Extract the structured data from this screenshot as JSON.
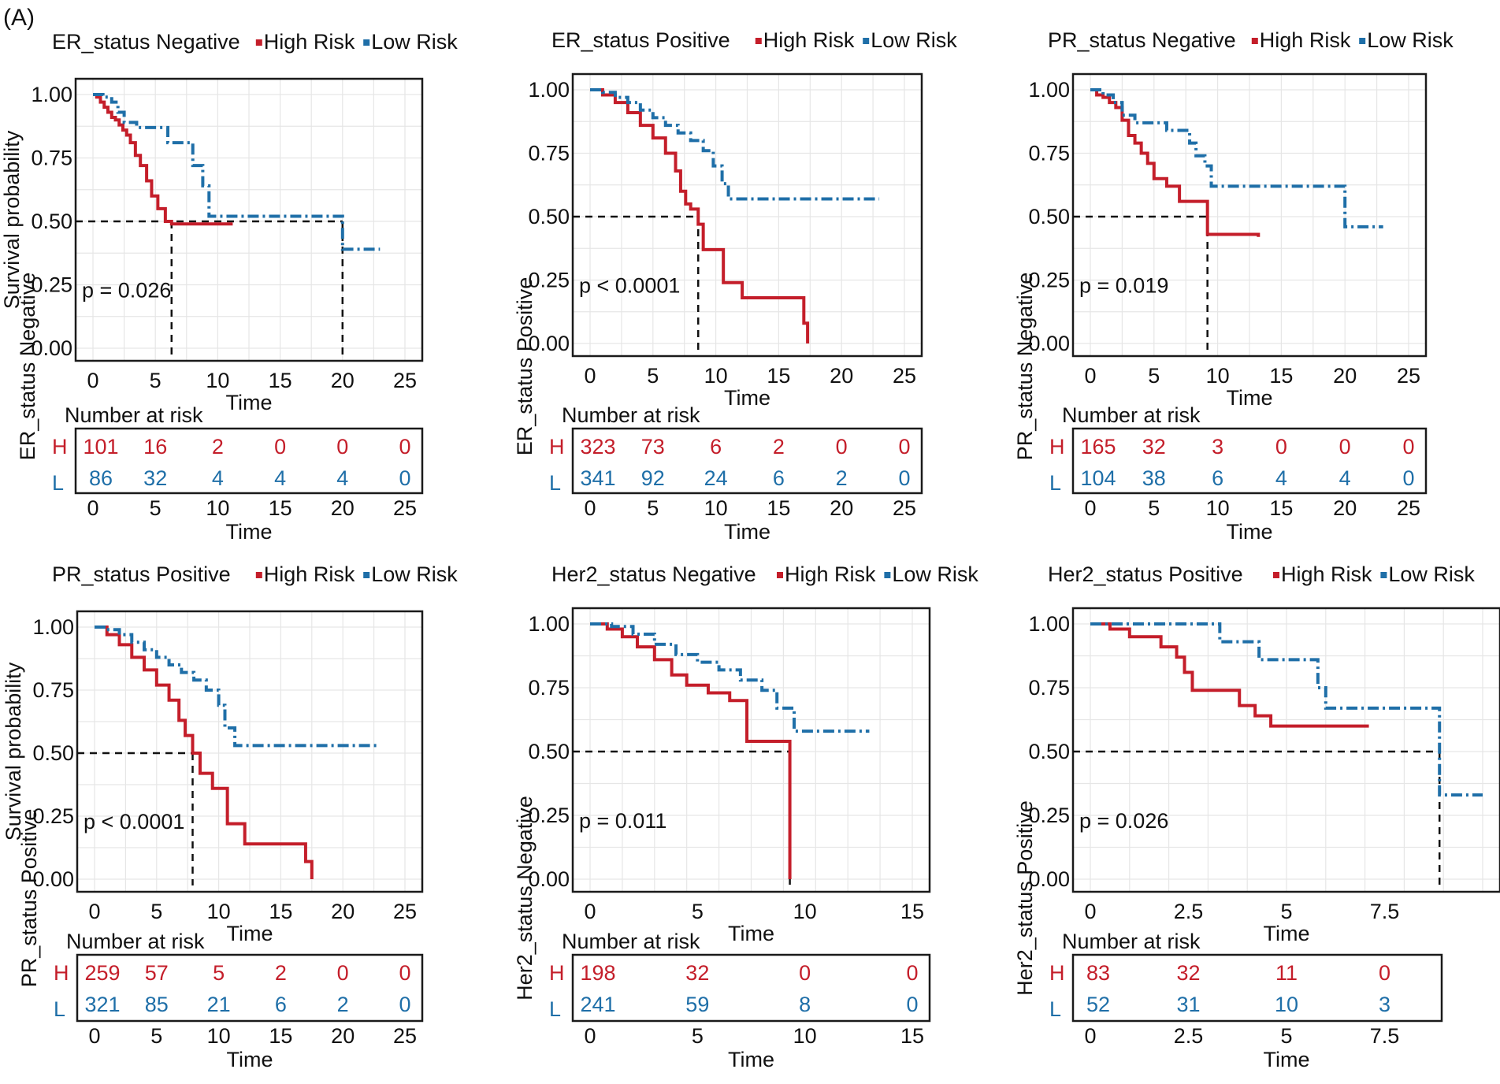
{
  "figure_label": "(A)",
  "colors": {
    "high": "#c41e2a",
    "low": "#1f6fa8",
    "grid": "#e6e6e6",
    "frame": "#1a1a1a",
    "median": "#111111"
  },
  "common": {
    "ylabel": "Survival probability",
    "xlabel": "Time",
    "risk_title": "Number at risk",
    "high_label": "High Risk",
    "low_label": "Low Risk",
    "h_row": "H",
    "l_row": "L",
    "y_ticks": [
      "0.00",
      "0.25",
      "0.50",
      "0.75",
      "1.00"
    ]
  },
  "chart_data": [
    {
      "type": "line",
      "title": "ER_status Negative",
      "strata_label": "ER_status Negative",
      "pvalue": "p = 0.026",
      "xlim": [
        0,
        25
      ],
      "ylim": [
        0,
        1
      ],
      "x_ticks": [
        "0",
        "5",
        "10",
        "15",
        "20",
        "25"
      ],
      "x_tick_values": [
        0,
        5,
        10,
        15,
        20,
        25
      ],
      "median_high": 6.3,
      "median_low": 20.0,
      "risk_times": [
        0,
        5,
        10,
        15,
        20,
        25
      ],
      "risk_high": [
        "101",
        "16",
        "2",
        "0",
        "0",
        "0"
      ],
      "risk_low": [
        "86",
        "32",
        "4",
        "4",
        "4",
        "0"
      ],
      "series": [
        {
          "name": "High Risk",
          "x": [
            0,
            0.3,
            0.6,
            0.9,
            1.2,
            1.5,
            1.8,
            2.1,
            2.4,
            2.7,
            3.0,
            3.4,
            3.8,
            4.3,
            4.7,
            5.2,
            5.8,
            6.3,
            11.2
          ],
          "y": [
            1.0,
            0.99,
            0.97,
            0.95,
            0.93,
            0.91,
            0.9,
            0.88,
            0.86,
            0.84,
            0.81,
            0.76,
            0.72,
            0.66,
            0.6,
            0.55,
            0.5,
            0.49,
            0.49
          ]
        },
        {
          "name": "Low Risk",
          "x": [
            0,
            0.8,
            1.5,
            2.0,
            2.5,
            3.5,
            5.0,
            6.0,
            7.5,
            8.0,
            8.8,
            9.3,
            10.0,
            20.0,
            23.0
          ],
          "y": [
            1.0,
            0.99,
            0.97,
            0.93,
            0.89,
            0.87,
            0.87,
            0.81,
            0.81,
            0.72,
            0.64,
            0.52,
            0.52,
            0.39,
            0.39
          ]
        }
      ]
    },
    {
      "type": "line",
      "title": "ER_status Positive",
      "strata_label": "ER_status Positive",
      "pvalue": "p < 0.0001",
      "xlim": [
        0,
        25
      ],
      "ylim": [
        0,
        1
      ],
      "x_ticks": [
        "0",
        "5",
        "10",
        "15",
        "20",
        "25"
      ],
      "x_tick_values": [
        0,
        5,
        10,
        15,
        20,
        25
      ],
      "median_high": 8.6,
      "median_low": null,
      "risk_times": [
        0,
        5,
        10,
        15,
        20,
        25
      ],
      "risk_high": [
        "323",
        "73",
        "6",
        "2",
        "0",
        "0"
      ],
      "risk_low": [
        "341",
        "92",
        "24",
        "6",
        "2",
        "0"
      ],
      "series": [
        {
          "name": "High Risk",
          "x": [
            0,
            1,
            2,
            3,
            4,
            5,
            6,
            6.8,
            7.2,
            7.6,
            8.0,
            8.6,
            9.0,
            10.6,
            12.1,
            17.0,
            17.3
          ],
          "y": [
            1.0,
            0.98,
            0.95,
            0.91,
            0.86,
            0.81,
            0.75,
            0.68,
            0.6,
            0.55,
            0.53,
            0.47,
            0.37,
            0.24,
            0.18,
            0.08,
            0.0
          ]
        },
        {
          "name": "Low Risk",
          "x": [
            0,
            1,
            2,
            3,
            4,
            5,
            6,
            7,
            8,
            9,
            9.8,
            10.5,
            11.0,
            23.0
          ],
          "y": [
            1.0,
            0.99,
            0.97,
            0.95,
            0.92,
            0.89,
            0.86,
            0.83,
            0.8,
            0.76,
            0.7,
            0.63,
            0.57,
            0.57
          ]
        }
      ]
    },
    {
      "type": "line",
      "title": "PR_status Negative",
      "strata_label": "PR_status Negative",
      "pvalue": "p = 0.019",
      "xlim": [
        0,
        25
      ],
      "ylim": [
        0,
        1
      ],
      "x_ticks": [
        "0",
        "5",
        "10",
        "15",
        "20",
        "25"
      ],
      "x_tick_values": [
        0,
        5,
        10,
        15,
        20,
        25
      ],
      "median_high": 9.2,
      "median_low": null,
      "risk_times": [
        0,
        5,
        10,
        15,
        20,
        25
      ],
      "risk_high": [
        "165",
        "32",
        "3",
        "0",
        "0",
        "0"
      ],
      "risk_low": [
        "104",
        "38",
        "6",
        "4",
        "4",
        "0"
      ],
      "series": [
        {
          "name": "High Risk",
          "x": [
            0,
            0.5,
            1.0,
            1.5,
            2.0,
            2.5,
            3.0,
            3.5,
            4.0,
            4.5,
            5.0,
            6.0,
            7.0,
            9.2,
            13.2
          ],
          "y": [
            1.0,
            0.98,
            0.97,
            0.95,
            0.93,
            0.88,
            0.82,
            0.79,
            0.75,
            0.71,
            0.65,
            0.62,
            0.56,
            0.43,
            0.42
          ]
        },
        {
          "name": "Low Risk",
          "x": [
            0,
            1.0,
            1.8,
            2.5,
            3.5,
            4.5,
            6.0,
            7.0,
            7.8,
            8.3,
            9.0,
            9.5,
            20.0,
            23.0
          ],
          "y": [
            1.0,
            0.98,
            0.95,
            0.9,
            0.87,
            0.87,
            0.84,
            0.84,
            0.79,
            0.74,
            0.7,
            0.62,
            0.46,
            0.46
          ]
        }
      ]
    },
    {
      "type": "line",
      "title": "PR_status Positive",
      "strata_label": "PR_status Positive",
      "pvalue": "p < 0.0001",
      "xlim": [
        0,
        25
      ],
      "ylim": [
        0,
        1
      ],
      "x_ticks": [
        "0",
        "5",
        "10",
        "15",
        "20",
        "25"
      ],
      "x_tick_values": [
        0,
        5,
        10,
        15,
        20,
        25
      ],
      "median_high": 7.9,
      "median_low": null,
      "risk_times": [
        0,
        5,
        10,
        15,
        20,
        25
      ],
      "risk_high": [
        "259",
        "57",
        "5",
        "2",
        "0",
        "0"
      ],
      "risk_low": [
        "321",
        "85",
        "21",
        "6",
        "2",
        "0"
      ],
      "series": [
        {
          "name": "High Risk",
          "x": [
            0,
            1,
            2,
            3,
            4,
            5,
            6,
            6.8,
            7.3,
            7.9,
            8.5,
            9.5,
            10.7,
            12.1,
            17.0,
            17.5
          ],
          "y": [
            1.0,
            0.97,
            0.93,
            0.88,
            0.83,
            0.77,
            0.71,
            0.63,
            0.57,
            0.5,
            0.42,
            0.36,
            0.22,
            0.14,
            0.07,
            0.0
          ]
        },
        {
          "name": "Low Risk",
          "x": [
            0,
            1,
            2,
            3,
            4,
            5,
            6,
            7,
            8,
            9,
            10,
            10.5,
            11.3,
            23.0
          ],
          "y": [
            1.0,
            0.99,
            0.97,
            0.94,
            0.91,
            0.88,
            0.85,
            0.82,
            0.79,
            0.75,
            0.69,
            0.6,
            0.53,
            0.53
          ]
        }
      ]
    },
    {
      "type": "line",
      "title": "Her2_status Negative",
      "strata_label": "Her2_status Negative",
      "pvalue": "p = 0.011",
      "xlim": [
        0,
        15
      ],
      "ylim": [
        0,
        1
      ],
      "x_ticks": [
        "0",
        "5",
        "10",
        "15"
      ],
      "x_tick_values": [
        0,
        5,
        10,
        15
      ],
      "median_high": 9.3,
      "median_low": null,
      "risk_times": [
        0,
        5,
        10,
        15
      ],
      "risk_high": [
        "198",
        "32",
        "0",
        "0"
      ],
      "risk_low": [
        "241",
        "59",
        "8",
        "0"
      ],
      "series": [
        {
          "name": "High Risk",
          "x": [
            0,
            0.8,
            1.5,
            2.2,
            3.0,
            3.8,
            4.5,
            5.5,
            6.5,
            7.3,
            9.3
          ],
          "y": [
            1.0,
            0.98,
            0.95,
            0.91,
            0.86,
            0.8,
            0.76,
            0.73,
            0.7,
            0.54,
            0.0
          ]
        },
        {
          "name": "Low Risk",
          "x": [
            0,
            1,
            2,
            3,
            4,
            5,
            6,
            7,
            8,
            8.7,
            9.5,
            13.0
          ],
          "y": [
            1.0,
            0.99,
            0.96,
            0.92,
            0.88,
            0.85,
            0.82,
            0.78,
            0.74,
            0.67,
            0.58,
            0.58
          ]
        }
      ]
    },
    {
      "type": "line",
      "title": "Her2_status Positive",
      "strata_label": "Her2_status Positive",
      "pvalue": "p = 0.026",
      "xlim": [
        0,
        10
      ],
      "ylim": [
        0,
        1
      ],
      "x_ticks": [
        "0",
        "2.5",
        "5",
        "7.5"
      ],
      "x_tick_values": [
        0,
        2.5,
        5,
        7.5
      ],
      "median_high": null,
      "median_low": 8.9,
      "risk_times": [
        0,
        2.5,
        5,
        7.5
      ],
      "risk_high": [
        "83",
        "32",
        "11",
        "0"
      ],
      "risk_low": [
        "52",
        "31",
        "10",
        "3"
      ],
      "series": [
        {
          "name": "High Risk",
          "x": [
            0,
            0.5,
            1.0,
            1.8,
            2.2,
            2.4,
            2.6,
            3.0,
            3.8,
            4.2,
            4.6,
            7.1
          ],
          "y": [
            1.0,
            0.98,
            0.95,
            0.91,
            0.87,
            0.81,
            0.74,
            0.74,
            0.68,
            0.64,
            0.6,
            0.6
          ]
        },
        {
          "name": "Low Risk",
          "x": [
            0,
            3.3,
            4.3,
            5.8,
            6.0,
            8.9,
            9.2,
            10.0
          ],
          "y": [
            1.0,
            0.93,
            0.86,
            0.75,
            0.67,
            0.33,
            0.33,
            0.33
          ]
        }
      ]
    }
  ]
}
